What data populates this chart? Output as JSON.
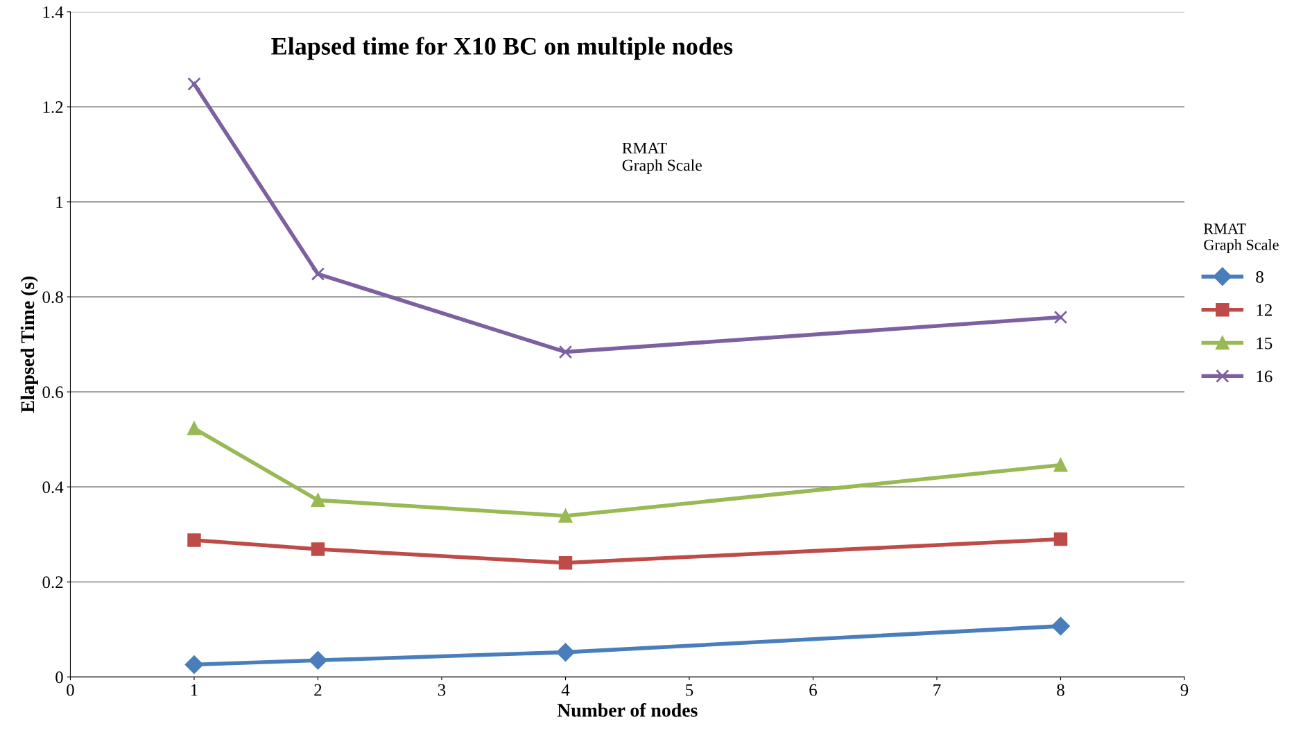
{
  "chart_data": {
    "type": "line",
    "title": "Elapsed time for X10 BC on multiple nodes",
    "xlabel": "Number of nodes",
    "ylabel": "Elapsed Time (s)",
    "legend_title": "RMAT\nGraph Scale",
    "annotations": [
      "RMAT\nGraph Scale"
    ],
    "x": [
      1,
      2,
      4,
      8
    ],
    "series": [
      {
        "name": "8",
        "color": "#4a7ebb",
        "marker": "diamond",
        "values": [
          0.026,
          0.035,
          0.052,
          0.107
        ]
      },
      {
        "name": "12",
        "color": "#be4b48",
        "marker": "square",
        "values": [
          0.288,
          0.269,
          0.24,
          0.29
        ]
      },
      {
        "name": "15",
        "color": "#98b954",
        "marker": "triangle",
        "values": [
          0.523,
          0.372,
          0.339,
          0.446
        ]
      },
      {
        "name": "16",
        "color": "#7d60a0",
        "marker": "cross",
        "values": [
          1.248,
          0.848,
          0.684,
          0.757
        ]
      }
    ],
    "xlim": [
      0,
      9
    ],
    "xticks": [
      0,
      1,
      2,
      3,
      4,
      5,
      6,
      7,
      8,
      9
    ],
    "ylim": [
      0,
      1.4
    ],
    "yticks": [
      0,
      0.2,
      0.4,
      0.6,
      0.8,
      1,
      1.2,
      1.4
    ],
    "grid": "y",
    "legend": "right",
    "line_style": "solid"
  }
}
